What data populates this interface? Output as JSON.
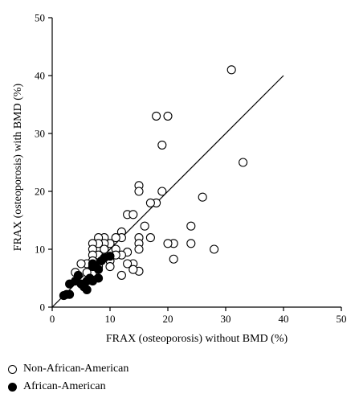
{
  "chart_data": {
    "type": "scatter",
    "title": "",
    "xlabel": "FRAX (osteoporosis) without BMD (%)",
    "ylabel": "FRAX (osteoporosis) with BMD (%)",
    "xlim": [
      0,
      50
    ],
    "ylim": [
      0,
      50
    ],
    "xticks": [
      "0",
      "10",
      "20",
      "30",
      "40",
      "50"
    ],
    "yticks": [
      "0",
      "10",
      "20",
      "30",
      "40",
      "50"
    ],
    "grid": false,
    "legend_position": "bottom-left",
    "reference_line": {
      "x": [
        0,
        40
      ],
      "y": [
        0,
        40
      ]
    },
    "series": [
      {
        "name": "Non-African-American",
        "marker": "open-circle",
        "points": [
          [
            31,
            41
          ],
          [
            33,
            25
          ],
          [
            18,
            33
          ],
          [
            20,
            33
          ],
          [
            19,
            28
          ],
          [
            26,
            19
          ],
          [
            28,
            10
          ],
          [
            24,
            14
          ],
          [
            24,
            11
          ],
          [
            21,
            11
          ],
          [
            21,
            8.3
          ],
          [
            20,
            11
          ],
          [
            19,
            20
          ],
          [
            18,
            18
          ],
          [
            17,
            18
          ],
          [
            17,
            12
          ],
          [
            16,
            14
          ],
          [
            15,
            21
          ],
          [
            15,
            20
          ],
          [
            15,
            12
          ],
          [
            15,
            11
          ],
          [
            15,
            10
          ],
          [
            15,
            6.2
          ],
          [
            13,
            16
          ],
          [
            14,
            16
          ],
          [
            14,
            7.5
          ],
          [
            14,
            6.5
          ],
          [
            13,
            9.5
          ],
          [
            13,
            7.5
          ],
          [
            12,
            13
          ],
          [
            12,
            12
          ],
          [
            12,
            9
          ],
          [
            12,
            5.5
          ],
          [
            11,
            12
          ],
          [
            11,
            10
          ],
          [
            11,
            9
          ],
          [
            10,
            11
          ],
          [
            10,
            8
          ],
          [
            10,
            7
          ],
          [
            9,
            12
          ],
          [
            9,
            11
          ],
          [
            9,
            10
          ],
          [
            8,
            12
          ],
          [
            8,
            11
          ],
          [
            8,
            9
          ],
          [
            8,
            7
          ],
          [
            7,
            11
          ],
          [
            7,
            10
          ],
          [
            7,
            9
          ],
          [
            7,
            8
          ],
          [
            7,
            6
          ],
          [
            6,
            7.5
          ],
          [
            6,
            6
          ],
          [
            5,
            7.5
          ],
          [
            4,
            6
          ]
        ]
      },
      {
        "name": "African-American",
        "marker": "filled-circle",
        "points": [
          [
            2,
            2
          ],
          [
            2.5,
            2.2
          ],
          [
            3,
            2.2
          ],
          [
            3,
            4
          ],
          [
            4,
            4.5
          ],
          [
            4.5,
            5.5
          ],
          [
            5,
            4
          ],
          [
            5.5,
            3.5
          ],
          [
            6,
            3
          ],
          [
            6,
            4.5
          ],
          [
            6.5,
            5
          ],
          [
            7,
            7.5
          ],
          [
            7,
            7
          ],
          [
            7,
            4.5
          ],
          [
            7.5,
            7
          ],
          [
            8,
            6.5
          ],
          [
            8,
            5
          ],
          [
            8.5,
            8
          ],
          [
            9,
            8.5
          ],
          [
            10,
            8.8
          ]
        ]
      }
    ]
  }
}
